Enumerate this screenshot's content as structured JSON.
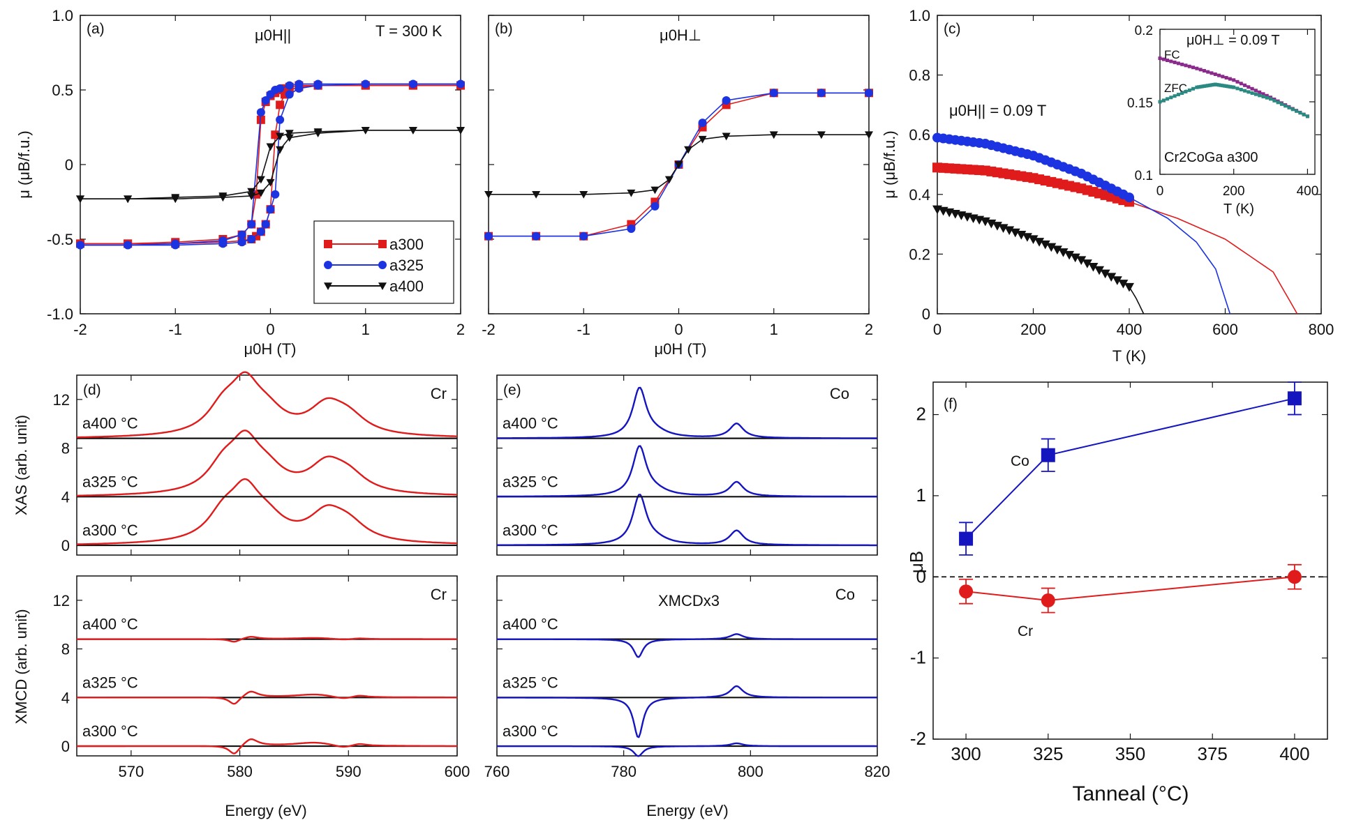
{
  "colors": {
    "a300": "#e01b1b",
    "a325": "#1b33e0",
    "a400": "#111111",
    "fc": "#8a2a8a",
    "zfc": "#2a8a82",
    "cr": "#e01b1b",
    "co": "#1515c0"
  },
  "chart_data": [
    {
      "id": "a",
      "type": "line",
      "panel_label": "(a)",
      "field_label": "μ0H||",
      "temp_label": "T = 300 K",
      "xlabel": "μ0H (T)",
      "ylabel": "μ (μB/f.u.)",
      "xlim": [
        -2,
        2
      ],
      "ylim": [
        -1,
        1
      ],
      "xticks": [
        "-2",
        "-1",
        "0",
        "1",
        "2"
      ],
      "yticks": [
        "-1.0",
        "-0.5",
        "0",
        "0.5",
        "1.0"
      ],
      "legend": [
        "a300",
        "a325",
        "a400"
      ],
      "series": [
        {
          "name": "a300",
          "x": [
            -2,
            -1.5,
            -1,
            -0.5,
            -0.3,
            -0.2,
            -0.15,
            -0.1,
            -0.05,
            0,
            0.05,
            0.1,
            0.15,
            0.2,
            0.3,
            0.5,
            1,
            1.5,
            2
          ],
          "upper": [
            -0.53,
            -0.53,
            -0.52,
            -0.5,
            -0.47,
            -0.4,
            -0.2,
            0.3,
            0.42,
            0.46,
            0.48,
            0.5,
            0.51,
            0.52,
            0.53,
            0.53,
            0.53,
            0.53,
            0.53
          ],
          "lower": [
            -0.53,
            -0.53,
            -0.53,
            -0.52,
            -0.51,
            -0.5,
            -0.48,
            -0.45,
            -0.4,
            -0.3,
            0.2,
            0.4,
            0.47,
            0.5,
            0.52,
            0.53,
            0.53,
            0.53,
            0.53
          ]
        },
        {
          "name": "a325",
          "x": [
            -2,
            -1.5,
            -1,
            -0.5,
            -0.3,
            -0.2,
            -0.1,
            -0.05,
            0,
            0.05,
            0.1,
            0.2,
            0.3,
            0.5,
            1,
            1.5,
            2
          ],
          "upper": [
            -0.54,
            -0.54,
            -0.53,
            -0.51,
            -0.47,
            -0.4,
            0.35,
            0.43,
            0.47,
            0.5,
            0.51,
            0.53,
            0.54,
            0.54,
            0.54,
            0.54,
            0.54
          ],
          "lower": [
            -0.54,
            -0.54,
            -0.54,
            -0.53,
            -0.52,
            -0.5,
            -0.45,
            -0.4,
            -0.3,
            -0.2,
            0.3,
            0.47,
            0.51,
            0.53,
            0.54,
            0.54,
            0.54
          ]
        },
        {
          "name": "a400",
          "x": [
            -2,
            -1.5,
            -1,
            -0.5,
            -0.2,
            -0.1,
            0,
            0.1,
            0.2,
            0.5,
            1,
            1.5,
            2
          ],
          "upper": [
            -0.23,
            -0.23,
            -0.22,
            -0.21,
            -0.18,
            -0.1,
            0.12,
            0.19,
            0.21,
            0.22,
            0.23,
            0.23,
            0.23
          ],
          "lower": [
            -0.23,
            -0.23,
            -0.23,
            -0.22,
            -0.21,
            -0.19,
            -0.12,
            0.1,
            0.18,
            0.21,
            0.23,
            0.23,
            0.23
          ]
        }
      ]
    },
    {
      "id": "b",
      "type": "line",
      "panel_label": "(b)",
      "field_label": "μ0H⊥",
      "xlabel": "μ0H (T)",
      "xlim": [
        -2,
        2
      ],
      "ylim": [
        -1,
        1
      ],
      "xticks": [
        "-2",
        "-1",
        "0",
        "1",
        "2"
      ],
      "series": [
        {
          "name": "a300",
          "x": [
            -2,
            -1.5,
            -1,
            -0.5,
            -0.25,
            0,
            0.25,
            0.5,
            1,
            1.5,
            2
          ],
          "y": [
            -0.48,
            -0.48,
            -0.48,
            -0.4,
            -0.25,
            0,
            0.25,
            0.4,
            0.48,
            0.48,
            0.48
          ]
        },
        {
          "name": "a325",
          "x": [
            -2,
            -1.5,
            -1,
            -0.5,
            -0.25,
            0,
            0.25,
            0.5,
            1,
            1.5,
            2
          ],
          "y": [
            -0.48,
            -0.48,
            -0.48,
            -0.43,
            -0.28,
            0,
            0.28,
            0.43,
            0.48,
            0.48,
            0.48
          ]
        },
        {
          "name": "a400",
          "x": [
            -2,
            -1.5,
            -1,
            -0.5,
            -0.25,
            -0.1,
            0,
            0.1,
            0.25,
            0.5,
            1,
            1.5,
            2
          ],
          "y": [
            -0.2,
            -0.2,
            -0.2,
            -0.19,
            -0.17,
            -0.1,
            0,
            0.1,
            0.17,
            0.19,
            0.2,
            0.2,
            0.2
          ]
        }
      ]
    },
    {
      "id": "c",
      "type": "line",
      "panel_label": "(c)",
      "field_label": "μ0H|| = 0.09 T",
      "xlabel": "T (K)",
      "ylabel": "μ (μB/f.u.)",
      "xlim": [
        0,
        800
      ],
      "ylim": [
        0,
        1
      ],
      "xticks": [
        "0",
        "200",
        "400",
        "600",
        "800"
      ],
      "yticks": [
        "0",
        "0.2",
        "0.4",
        "0.6",
        "0.8",
        "1.0"
      ],
      "series": [
        {
          "name": "a300",
          "x": [
            0,
            100,
            200,
            300,
            400
          ],
          "y": [
            0.49,
            0.48,
            0.455,
            0.42,
            0.375
          ],
          "fit_x": [
            400,
            500,
            600,
            700,
            750
          ],
          "fit_y": [
            0.375,
            0.32,
            0.25,
            0.14,
            0.0
          ]
        },
        {
          "name": "a325",
          "x": [
            0,
            100,
            200,
            300,
            400
          ],
          "y": [
            0.59,
            0.57,
            0.53,
            0.47,
            0.39
          ],
          "fit_x": [
            400,
            480,
            540,
            580,
            610
          ],
          "fit_y": [
            0.39,
            0.32,
            0.24,
            0.15,
            0.0
          ]
        },
        {
          "name": "a400",
          "x": [
            0,
            100,
            200,
            300,
            400
          ],
          "y": [
            0.35,
            0.31,
            0.25,
            0.18,
            0.09
          ],
          "fit_x": [
            400,
            415,
            430
          ],
          "fit_y": [
            0.09,
            0.05,
            0.0
          ]
        }
      ],
      "inset": {
        "field_label": "μ0H⊥ = 0.09 T",
        "sample_label": "Cr2CoGa a300",
        "xlabel": "T (K)",
        "xlim": [
          0,
          420
        ],
        "ylim": [
          0.1,
          0.2
        ],
        "xticks": [
          "0",
          "200",
          "400"
        ],
        "yticks": [
          "0.1",
          "0.15",
          "0.2"
        ],
        "series": [
          {
            "name": "FC",
            "x": [
              0,
              100,
              200,
              300,
              400
            ],
            "y": [
              0.18,
              0.173,
              0.165,
              0.153,
              0.14
            ]
          },
          {
            "name": "ZFC",
            "x": [
              0,
              100,
              150,
              200,
              300,
              400
            ],
            "y": [
              0.15,
              0.16,
              0.162,
              0.16,
              0.152,
              0.14
            ]
          }
        ]
      }
    },
    {
      "id": "d",
      "type": "line",
      "panel_label": "(d)",
      "element_label": "Cr",
      "ylabel": "XAS (arb. unit)",
      "xlim": [
        565,
        600
      ],
      "ylim": [
        -0.8,
        14
      ],
      "yticks": [
        "0",
        "4",
        "8",
        "12"
      ],
      "offsets": [
        0,
        4,
        8.8
      ],
      "labels": [
        "a300 °C",
        "a325 °C",
        "a400 °C"
      ]
    },
    {
      "id": "e",
      "type": "line",
      "panel_label": "(e)",
      "element_label": "Co",
      "xlim": [
        760,
        820
      ],
      "ylim": [
        -0.8,
        14
      ],
      "offsets": [
        0,
        4,
        8.8
      ],
      "labels": [
        "a300 °C",
        "a325 °C",
        "a400 °C"
      ]
    },
    {
      "id": "d2",
      "type": "line",
      "element_label": "Cr",
      "xlabel": "Energy (eV)",
      "ylabel": "XMCD (arb. unit)",
      "xlim": [
        565,
        600
      ],
      "ylim": [
        -0.8,
        14
      ],
      "xticks": [
        "570",
        "580",
        "590",
        "600"
      ],
      "yticks": [
        "0",
        "4",
        "8",
        "12"
      ],
      "offsets": [
        0,
        4,
        8.8
      ],
      "labels": [
        "a300 °C",
        "a325 °C",
        "a400 °C"
      ]
    },
    {
      "id": "e2",
      "type": "line",
      "element_label": "Co",
      "scale_label": "XMCDx3",
      "xlabel": "Energy (eV)",
      "xlim": [
        760,
        820
      ],
      "ylim": [
        -0.8,
        14
      ],
      "xticks": [
        "760",
        "780",
        "800",
        "820"
      ],
      "offsets": [
        0,
        4,
        8.8
      ],
      "labels": [
        "a300 °C",
        "a325 °C",
        "a400 °C"
      ]
    },
    {
      "id": "f",
      "type": "scatter",
      "panel_label": "(f)",
      "xlabel": "Tanneal (°C)",
      "ylabel": "μB",
      "xlim": [
        290,
        410
      ],
      "ylim": [
        -2,
        2.4
      ],
      "xticks": [
        "300",
        "325",
        "350",
        "375",
        "400"
      ],
      "yticks": [
        "-2",
        "-1",
        "0",
        "1",
        "2"
      ],
      "series": [
        {
          "name": "Co",
          "x": [
            300,
            325,
            400
          ],
          "y": [
            0.47,
            1.5,
            2.2
          ],
          "err": [
            0.2,
            0.2,
            0.2
          ]
        },
        {
          "name": "Cr",
          "x": [
            300,
            325,
            400
          ],
          "y": [
            -0.18,
            -0.29,
            0.0
          ],
          "err": [
            0.15,
            0.15,
            0.15
          ]
        }
      ]
    }
  ]
}
